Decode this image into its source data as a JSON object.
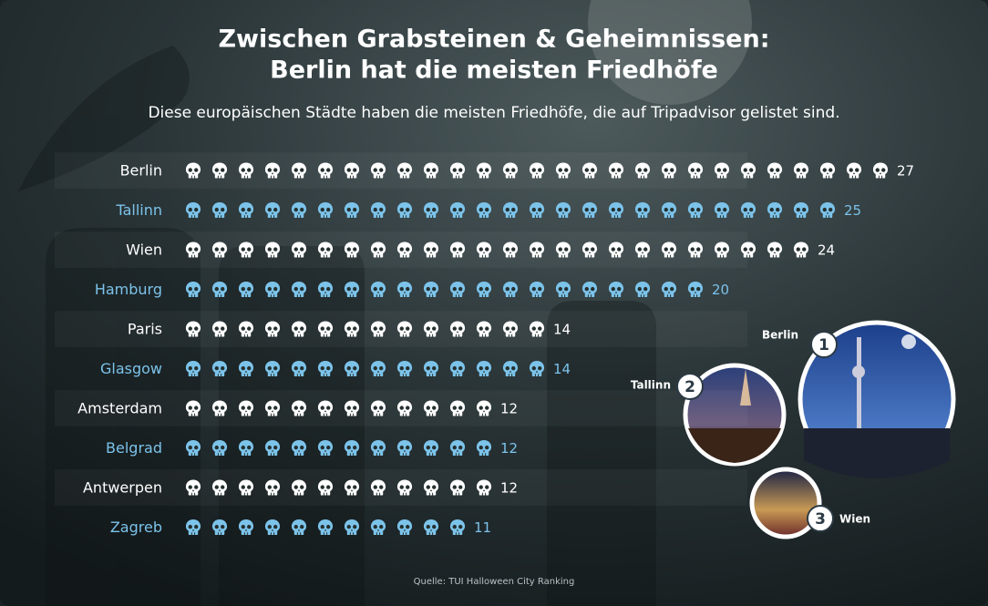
{
  "chart_data": {
    "type": "pictograph",
    "title": [
      "Zwischen Grabsteinen & Geheimnissen:",
      "Berlin hat die meisten Friedhöfe"
    ],
    "subtitle": "Diese europäischen Städte haben die meisten Friedhöfe, die auf Tripadvisor gelistet sind.",
    "categories": [
      "Berlin",
      "Tallinn",
      "Wien",
      "Hamburg",
      "Paris",
      "Glasgow",
      "Amsterdam",
      "Belgrad",
      "Antwerpen",
      "Zagreb"
    ],
    "values": [
      27,
      25,
      24,
      20,
      14,
      14,
      12,
      12,
      12,
      11
    ],
    "colors": [
      "#ffffff",
      "#7cc3ea",
      "#ffffff",
      "#7cc3ea",
      "#ffffff",
      "#7cc3ea",
      "#ffffff",
      "#7cc3ea",
      "#ffffff",
      "#7cc3ea"
    ],
    "highlights": [
      {
        "rank": 1,
        "label": "Berlin"
      },
      {
        "rank": 2,
        "label": "Tallinn"
      },
      {
        "rank": 3,
        "label": "Wien"
      }
    ],
    "source": "Quelle: TUI Halloween City Ranking"
  }
}
